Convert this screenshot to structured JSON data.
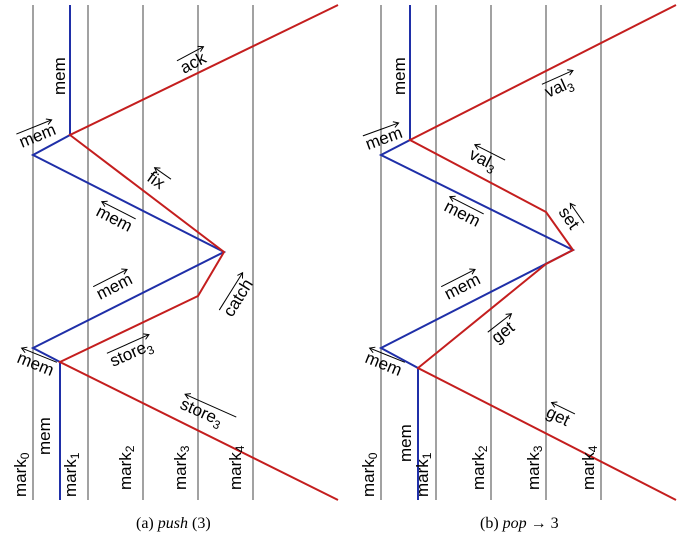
{
  "panels": [
    {
      "id": "a",
      "caption_prefix": "(a) ",
      "caption_italic": "push",
      "caption_suffix": " (3)",
      "marks": [
        "mark",
        "mark",
        "mark",
        "mark",
        "mark"
      ],
      "mark_subs": [
        "0",
        "1",
        "2",
        "3",
        "4"
      ],
      "top_label": "mem",
      "bottom_label": "mem",
      "labels": {
        "mem_top": "mem",
        "ack": "ack",
        "fix": "fix",
        "mem_mid1": "mem",
        "mem_mid2": "mem",
        "catch": "catch",
        "store_mid": "store",
        "store_mid_sub": "3",
        "mem_bottom": "mem",
        "store_low": "store",
        "store_low_sub": "3"
      }
    },
    {
      "id": "b",
      "caption_prefix": "(b) ",
      "caption_italic": "pop",
      "caption_suffix": " → 3",
      "marks": [
        "mark",
        "mark",
        "mark",
        "mark",
        "mark"
      ],
      "mark_subs": [
        "0",
        "1",
        "2",
        "3",
        "4"
      ],
      "top_label": "mem",
      "bottom_label": "mem",
      "labels": {
        "mem_top": "mem",
        "val_top": "val",
        "val_top_sub": "3",
        "val_mid": "val",
        "val_mid_sub": "3",
        "set": "set",
        "mem_mid1": "mem",
        "mem_mid2": "mem",
        "get_mid": "get",
        "mem_bottom": "mem",
        "get_low": "get"
      }
    }
  ],
  "colors": {
    "blue": "#1f2fa8",
    "red": "#c41e1e",
    "gray": "#8a8a8a"
  }
}
